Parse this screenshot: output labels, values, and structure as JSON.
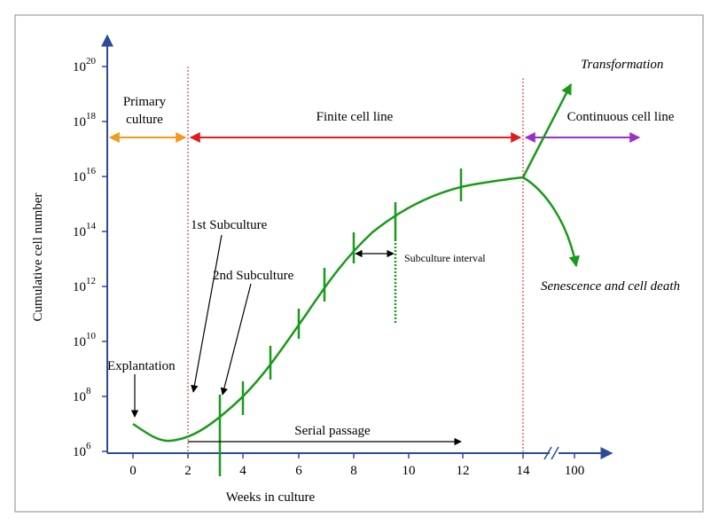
{
  "title_y": "Cumulative cell number",
  "title_x": "Weeks in culture",
  "yticks": [
    {
      "base": "10",
      "exponent": "6"
    },
    {
      "base": "10",
      "exponent": "8"
    },
    {
      "base": "10",
      "exponent": "10"
    },
    {
      "base": "10",
      "exponent": "12"
    },
    {
      "base": "10",
      "exponent": "14"
    },
    {
      "base": "10",
      "exponent": "16"
    },
    {
      "base": "10",
      "exponent": "18"
    },
    {
      "base": "10",
      "exponent": "20"
    }
  ],
  "xticks": [
    "0",
    "2",
    "4",
    "6",
    "8",
    "10",
    "12",
    "14",
    "100"
  ],
  "phases": {
    "primary": [
      "Primary",
      "culture"
    ],
    "finite": "Finite cell line",
    "continuous": "Continuous cell line"
  },
  "annotations": {
    "transformation": "Transformation",
    "senescence": "Senescence and cell death",
    "subculture_interval": "Subculture interval",
    "serial_passage": "Serial passage",
    "first_subculture": "1st Subculture",
    "second_subculture": "2nd Subculture",
    "explantation": "Explantation"
  }
}
